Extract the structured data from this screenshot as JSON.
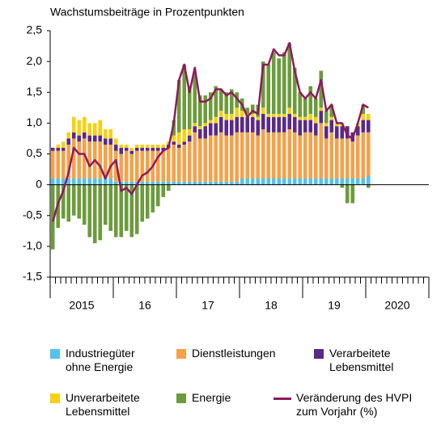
{
  "chart_data": {
    "type": "bar",
    "stacked": true,
    "title": "Wachstumsbeiträge in Prozentpunkten",
    "categories": [
      "2015",
      null,
      null,
      null,
      null,
      null,
      null,
      null,
      null,
      null,
      null,
      null,
      "16",
      null,
      null,
      null,
      null,
      null,
      null,
      null,
      null,
      null,
      null,
      null,
      "17",
      null,
      null,
      null,
      null,
      null,
      null,
      null,
      null,
      null,
      null,
      null,
      "18",
      null,
      null,
      null,
      null,
      null,
      null,
      null,
      null,
      null,
      null,
      null,
      "19",
      null,
      null,
      null,
      null,
      null,
      null,
      null,
      null,
      null,
      null,
      null,
      "2020"
    ],
    "ylim": [
      -1.5,
      2.5
    ],
    "yticks": [
      {
        "value": 2.5,
        "label": "2,5"
      },
      {
        "value": 2,
        "label": "2,0"
      },
      {
        "value": 1.5,
        "label": "1,5"
      },
      {
        "value": 1,
        "label": "1,0"
      },
      {
        "value": 0.5,
        "label": "0,5"
      },
      0,
      {
        "value": -0.5,
        "label": "-0,5"
      },
      {
        "value": -1,
        "label": "-1,0"
      },
      {
        "value": -1.5,
        "label": "-1,5"
      }
    ],
    "series": [
      {
        "name": "Industriegüter ohne Energie",
        "color": "#55c1ee",
        "values": [
          0.1,
          0.1,
          0.1,
          0.1,
          0.1,
          0.1,
          0.1,
          0.1,
          0.1,
          0.1,
          0.1,
          0.1,
          0.05,
          0.05,
          0.05,
          0.05,
          0.05,
          0.05,
          0.05,
          0.05,
          0.05,
          0.05,
          0.05,
          0.05,
          0.05,
          0.05,
          0.05,
          0.05,
          0.05,
          0.05,
          0.05,
          0.05,
          0.05,
          0.05,
          0.05,
          0.05,
          0.1,
          0.1,
          0.1,
          0.1,
          0.1,
          0.1,
          0.1,
          0.1,
          0.1,
          0.1,
          0.1,
          0.1,
          0.1,
          0.1,
          0.1,
          0.1,
          0.1,
          0.1,
          0.1,
          0.1,
          0.1,
          0.1,
          0.1,
          0.1,
          0.15
        ]
      },
      {
        "name": "Dienstleistungen",
        "color": "#f5a14a",
        "values": [
          0.45,
          0.45,
          0.45,
          0.55,
          0.65,
          0.6,
          0.65,
          0.6,
          0.6,
          0.6,
          0.55,
          0.55,
          0.5,
          0.45,
          0.5,
          0.45,
          0.5,
          0.5,
          0.5,
          0.5,
          0.5,
          0.5,
          0.55,
          0.6,
          0.55,
          0.6,
          0.65,
          0.8,
          0.7,
          0.7,
          0.75,
          0.75,
          0.8,
          0.75,
          0.75,
          0.8,
          0.75,
          0.75,
          0.75,
          0.7,
          0.8,
          0.75,
          0.75,
          0.75,
          0.75,
          0.8,
          0.75,
          0.7,
          0.75,
          0.75,
          0.7,
          0.9,
          0.65,
          0.75,
          0.65,
          0.65,
          0.65,
          0.6,
          0.7,
          0.75,
          0.7
        ]
      },
      {
        "name": "Verarbeitete Lebensmittel",
        "color": "#5a2a86",
        "values": [
          0.05,
          0.05,
          0.05,
          0.1,
          0.1,
          0.1,
          0.1,
          0.1,
          0.1,
          0.1,
          0.1,
          0.1,
          0.1,
          0.1,
          0.05,
          0.05,
          0.05,
          0.05,
          0.05,
          0.05,
          0.05,
          0.05,
          0.05,
          0.05,
          0.05,
          0.05,
          0.1,
          0.1,
          0.15,
          0.2,
          0.2,
          0.2,
          0.25,
          0.25,
          0.25,
          0.25,
          0.25,
          0.25,
          0.25,
          0.25,
          0.25,
          0.25,
          0.25,
          0.25,
          0.25,
          0.25,
          0.25,
          0.25,
          0.2,
          0.2,
          0.2,
          0.2,
          0.2,
          0.2,
          0.2,
          0.2,
          0.2,
          0.15,
          0.15,
          0.2,
          0.2
        ]
      },
      {
        "name": "Unverarbeitete Lebensmittel",
        "color": "#f7d011",
        "values": [
          0,
          0.05,
          0.1,
          0.1,
          0.25,
          0.25,
          0.25,
          0.2,
          0.2,
          0.25,
          0.15,
          0.15,
          0.1,
          0.05,
          0.05,
          0.05,
          0.05,
          0.05,
          0.05,
          0.05,
          0.05,
          0.05,
          0.05,
          0.1,
          0.2,
          0.2,
          0.1,
          0.05,
          0.05,
          0.05,
          0.05,
          0.1,
          0.1,
          0.1,
          0.1,
          0.15,
          0.1,
          0.05,
          0.05,
          0.05,
          0.1,
          0.05,
          0.05,
          0.05,
          0.05,
          0.1,
          0.05,
          0.05,
          0.05,
          0.1,
          0.1,
          0.05,
          0.05,
          0.05,
          0.05,
          0.05,
          0,
          0,
          0.05,
          0.1,
          0.1
        ]
      },
      {
        "name": "Energie",
        "color": "#6c9b3c",
        "values": [
          -1.05,
          -0.7,
          -0.55,
          -0.6,
          -0.5,
          -0.55,
          -0.65,
          -0.85,
          -0.95,
          -0.9,
          -0.65,
          -0.75,
          -0.85,
          -0.85,
          -0.75,
          -0.85,
          -0.8,
          -0.6,
          -0.55,
          -0.45,
          -0.35,
          -0.2,
          -0.1,
          0.25,
          0.85,
          1.05,
          0.7,
          0.8,
          0.5,
          0.45,
          0.45,
          0.5,
          0.35,
          0.35,
          0.4,
          0.25,
          0.2,
          0.1,
          0.15,
          0.2,
          0.75,
          0.8,
          1,
          0.9,
          1,
          1.05,
          0.75,
          0.4,
          0.3,
          0.45,
          0.3,
          0.6,
          0.2,
          0.2,
          0,
          -0.05,
          -0.3,
          -0.3,
          0,
          0.15,
          -0.05
        ]
      },
      {
        "name": "Veränderung des HVPI zum Vorjahr (%)",
        "color": "#8e1a5c",
        "type": "line",
        "values": [
          -0.6,
          -0.3,
          -0.1,
          0.2,
          0.6,
          0.5,
          0.5,
          0.3,
          0.4,
          0.3,
          0.1,
          0.3,
          0.4,
          -0.1,
          -0.05,
          -0.15,
          0,
          0.15,
          0.2,
          0.3,
          0.45,
          0.55,
          0.6,
          1,
          1.7,
          1.95,
          1.5,
          1.9,
          1.35,
          1.35,
          1.4,
          1.55,
          1.55,
          1.45,
          1.5,
          1.4,
          1.3,
          1.1,
          1.2,
          1.15,
          1.95,
          1.95,
          2.2,
          2.1,
          2.1,
          2.3,
          1.85,
          1.5,
          1.4,
          1.5,
          1.4,
          1.7,
          1.2,
          1.3,
          1,
          1,
          0.8,
          0.75,
          1,
          1.3,
          1.25
        ]
      }
    ]
  }
}
